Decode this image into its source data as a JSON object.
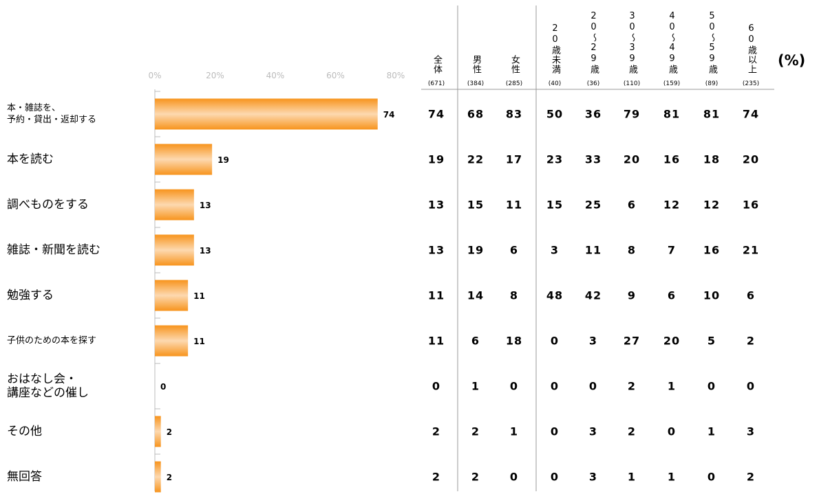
{
  "chart_data": {
    "type": "bar",
    "orientation": "horizontal",
    "categories": [
      "本・雑誌を、\n予約・貸出・返却する",
      "本を読む",
      "調べものをする",
      "雑誌・新聞を読む",
      "勉強する",
      "子供のための本を探す",
      "おはなし会・\n講座などの催し",
      "その他",
      "無回答"
    ],
    "values": [
      74,
      19,
      13,
      13,
      11,
      11,
      0,
      2,
      2
    ],
    "color": "#f7941d",
    "xlim": [
      0,
      80
    ],
    "xticks": [
      {
        "value": 0,
        "label": "0%"
      },
      {
        "value": 20,
        "label": "20%"
      },
      {
        "value": 40,
        "label": "40%"
      },
      {
        "value": 60,
        "label": "60%"
      },
      {
        "value": 80,
        "label": "80%"
      }
    ]
  },
  "table": {
    "unit": "(%)",
    "columns": [
      {
        "label": "全体",
        "n": "(671)"
      },
      {
        "label": "男性",
        "n": "(384)"
      },
      {
        "label": "女性",
        "n": "(285)"
      },
      {
        "label": "20歳未満",
        "n": "(40)"
      },
      {
        "label": "20～29歳",
        "n": "(36)"
      },
      {
        "label": "30～39歳",
        "n": "(110)"
      },
      {
        "label": "40～49歳",
        "n": "(159)"
      },
      {
        "label": "50～59歳",
        "n": "(89)"
      },
      {
        "label": "60歳以上",
        "n": "(235)"
      }
    ],
    "rows": [
      [
        74,
        68,
        83,
        50,
        36,
        79,
        81,
        81,
        74
      ],
      [
        19,
        22,
        17,
        23,
        33,
        20,
        16,
        18,
        20
      ],
      [
        13,
        15,
        11,
        15,
        25,
        6,
        12,
        12,
        16
      ],
      [
        13,
        19,
        6,
        3,
        11,
        8,
        7,
        16,
        21
      ],
      [
        11,
        14,
        8,
        48,
        42,
        9,
        6,
        10,
        6
      ],
      [
        11,
        6,
        18,
        0,
        3,
        27,
        20,
        5,
        2
      ],
      [
        0,
        1,
        0,
        0,
        0,
        2,
        1,
        0,
        0
      ],
      [
        2,
        2,
        1,
        0,
        3,
        2,
        0,
        1,
        3
      ],
      [
        2,
        2,
        0,
        0,
        3,
        1,
        1,
        0,
        2
      ]
    ]
  }
}
